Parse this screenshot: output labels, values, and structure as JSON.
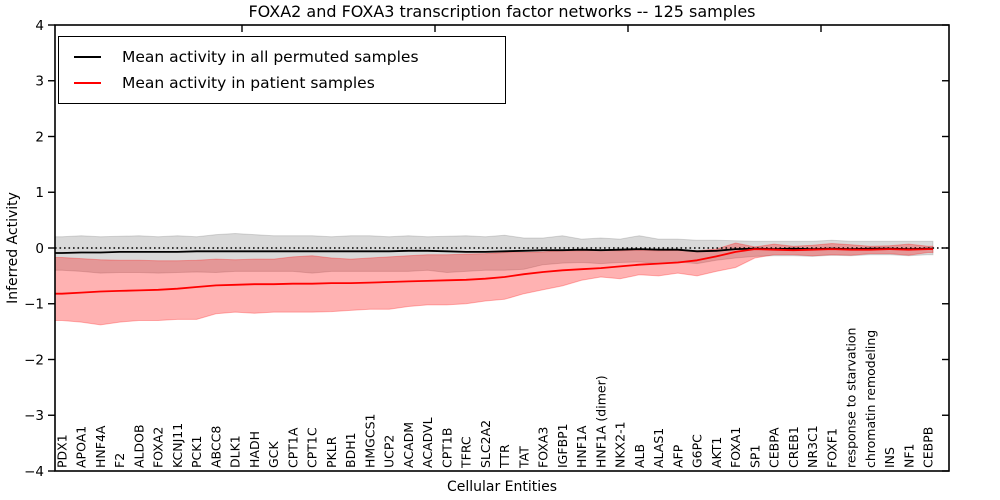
{
  "chart_data": {
    "type": "line",
    "title": "FOXA2 and FOXA3 transcription factor networks -- 125 samples",
    "xlabel": "Cellular Entities",
    "ylabel": "Inferred Activity",
    "ylim": [
      -4,
      4
    ],
    "y_tick_values": [
      4,
      3,
      2,
      1,
      0,
      -1,
      -2,
      -3,
      -4
    ],
    "y_tick_labels": [
      "4",
      "3",
      "2",
      "1",
      "0",
      "−1",
      "−2",
      "−3",
      "−4"
    ],
    "zero_reference_line": {
      "y": 0,
      "style": "dotted",
      "color": "#000000"
    },
    "grid": "off",
    "legend": {
      "position": "upper-left",
      "entries": [
        {
          "label": "Mean activity in all permuted samples",
          "color": "#000000"
        },
        {
          "label": "Mean activity in patient samples",
          "color": "#ff0000"
        }
      ]
    },
    "categories": [
      "PDX1",
      "APOA1",
      "HNF4A",
      "F2",
      "ALDOB",
      "FOXA2",
      "KCNJ11",
      "PCK1",
      "ABCC8",
      "DLK1",
      "HADH",
      "GCK",
      "CPT1A",
      "CPT1C",
      "PKLR",
      "BDH1",
      "HMGCS1",
      "UCP2",
      "ACADM",
      "ACADVL",
      "CPT1B",
      "TFRC",
      "SLC2A2",
      "TTR",
      "TAT",
      "FOXA3",
      "IGFBP1",
      "HNF1A",
      "HNF1A (dimer)",
      "NKX2-1",
      "ALB",
      "ALAS1",
      "AFP",
      "G6PC",
      "AKT1",
      "FOXA1",
      "SP1",
      "CEBPA",
      "CREB1",
      "NR3C1",
      "FOXF1",
      "response to starvation",
      "chromatin remodeling",
      "INS",
      "NF1",
      "CEBPB"
    ],
    "series": [
      {
        "name": "Mean activity in all permuted samples",
        "color": "#000000",
        "values": [
          -0.09,
          -0.08,
          -0.08,
          -0.07,
          -0.07,
          -0.07,
          -0.07,
          -0.06,
          -0.06,
          -0.06,
          -0.06,
          -0.06,
          -0.06,
          -0.06,
          -0.06,
          -0.06,
          -0.06,
          -0.06,
          -0.05,
          -0.05,
          -0.06,
          -0.07,
          -0.07,
          -0.06,
          -0.05,
          -0.04,
          -0.04,
          -0.03,
          -0.04,
          -0.03,
          -0.02,
          -0.03,
          -0.03,
          -0.06,
          -0.05,
          -0.02,
          -0.01,
          -0.02,
          -0.01,
          -0.02,
          -0.01,
          -0.02,
          -0.01,
          -0.01,
          -0.02,
          -0.01
        ]
      },
      {
        "name": "Mean activity in patient samples",
        "color": "#ff0000",
        "values": [
          -0.82,
          -0.8,
          -0.78,
          -0.77,
          -0.76,
          -0.75,
          -0.73,
          -0.7,
          -0.67,
          -0.66,
          -0.65,
          -0.65,
          -0.64,
          -0.64,
          -0.63,
          -0.63,
          -0.62,
          -0.61,
          -0.6,
          -0.59,
          -0.58,
          -0.57,
          -0.55,
          -0.52,
          -0.47,
          -0.43,
          -0.4,
          -0.38,
          -0.36,
          -0.33,
          -0.3,
          -0.28,
          -0.26,
          -0.22,
          -0.15,
          -0.07,
          -0.02,
          -0.03,
          -0.04,
          -0.03,
          -0.02,
          -0.03,
          -0.03,
          -0.02,
          -0.03,
          -0.02
        ]
      }
    ],
    "bands": [
      {
        "name": "permuted samples range",
        "color": "#000000",
        "opacity": 0.15,
        "upper": [
          0.2,
          0.22,
          0.2,
          0.21,
          0.22,
          0.2,
          0.22,
          0.2,
          0.24,
          0.26,
          0.24,
          0.22,
          0.22,
          0.22,
          0.2,
          0.22,
          0.22,
          0.2,
          0.22,
          0.2,
          0.21,
          0.22,
          0.2,
          0.23,
          0.18,
          0.18,
          0.22,
          0.16,
          0.18,
          0.16,
          0.22,
          0.16,
          0.16,
          0.14,
          0.14,
          0.13,
          0.12,
          0.12,
          0.12,
          0.12,
          0.14,
          0.12,
          0.12,
          0.12,
          0.12,
          0.12
        ],
        "lower": [
          -0.4,
          -0.42,
          -0.45,
          -0.44,
          -0.44,
          -0.45,
          -0.44,
          -0.43,
          -0.44,
          -0.42,
          -0.42,
          -0.42,
          -0.42,
          -0.45,
          -0.42,
          -0.42,
          -0.42,
          -0.42,
          -0.42,
          -0.4,
          -0.44,
          -0.42,
          -0.4,
          -0.4,
          -0.38,
          -0.3,
          -0.27,
          -0.26,
          -0.28,
          -0.26,
          -0.25,
          -0.28,
          -0.25,
          -0.28,
          -0.22,
          -0.18,
          -0.15,
          -0.14,
          -0.14,
          -0.15,
          -0.13,
          -0.14,
          -0.12,
          -0.12,
          -0.14,
          -0.12
        ]
      },
      {
        "name": "patient samples range",
        "color": "#ff0000",
        "opacity": 0.3,
        "upper": [
          -0.17,
          -0.19,
          -0.21,
          -0.22,
          -0.22,
          -0.23,
          -0.23,
          -0.22,
          -0.2,
          -0.21,
          -0.2,
          -0.2,
          -0.16,
          -0.14,
          -0.18,
          -0.2,
          -0.18,
          -0.16,
          -0.14,
          -0.12,
          -0.12,
          -0.11,
          -0.1,
          -0.08,
          -0.08,
          -0.07,
          -0.05,
          -0.05,
          -0.04,
          -0.05,
          -0.04,
          -0.05,
          -0.04,
          -0.05,
          -0.02,
          0.09,
          0.02,
          0.07,
          0.03,
          0.05,
          0.08,
          0.06,
          0.03,
          0.04,
          0.07,
          0.03
        ],
        "lower": [
          -1.3,
          -1.33,
          -1.38,
          -1.33,
          -1.3,
          -1.3,
          -1.28,
          -1.28,
          -1.18,
          -1.15,
          -1.17,
          -1.15,
          -1.15,
          -1.15,
          -1.14,
          -1.12,
          -1.1,
          -1.1,
          -1.05,
          -1.02,
          -1.02,
          -1.0,
          -0.95,
          -0.92,
          -0.82,
          -0.75,
          -0.68,
          -0.58,
          -0.52,
          -0.55,
          -0.48,
          -0.5,
          -0.45,
          -0.5,
          -0.42,
          -0.35,
          -0.18,
          -0.12,
          -0.12,
          -0.14,
          -0.12,
          -0.13,
          -0.1,
          -0.1,
          -0.13,
          -0.08
        ]
      }
    ]
  }
}
